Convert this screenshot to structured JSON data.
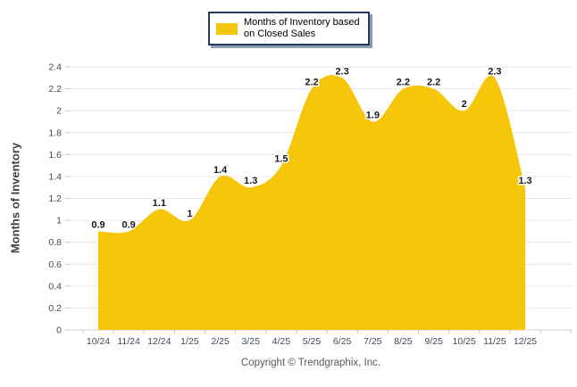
{
  "chart_data": {
    "type": "area",
    "title": "",
    "categories": [
      "10/24",
      "11/24",
      "12/24",
      "1/25",
      "2/25",
      "3/25",
      "4/25",
      "5/25",
      "6/25",
      "7/25",
      "8/25",
      "9/25",
      "10/25",
      "11/25",
      "12/25"
    ],
    "values": [
      0.9,
      0.9,
      1.1,
      1,
      1.4,
      1.3,
      1.5,
      2.2,
      2.3,
      1.9,
      2.2,
      2.2,
      2,
      2.3,
      1.3
    ],
    "series_name": "Months of Inventory based on Closed Sales",
    "xlabel": "",
    "ylabel": "Months of Inventory",
    "ylim": [
      0,
      2.4
    ],
    "ytick_step": 0.2,
    "yticks": [
      "0",
      "0.2",
      "0.4",
      "0.6",
      "0.8",
      "1",
      "1.2",
      "1.4",
      "1.6",
      "1.8",
      "2",
      "2.2",
      "2.4"
    ],
    "grid": true,
    "legend_position": "top-center",
    "smooth": true,
    "data_labels_shown": true
  },
  "legend": {
    "lines": [
      "Months of Inventory based",
      "on Closed Sales"
    ]
  },
  "footer": {
    "copyright": "Copyright © Trendgraphix, Inc."
  },
  "colors": {
    "series": "#F5C60A",
    "legend_border": "#1F3864",
    "grid": "#E6E6E6",
    "axis_line": "#D6D6D6",
    "tick": "#C4C4C4",
    "axis_text": "#3F4A5A",
    "data_label": "#1A1A1A",
    "data_label_halo": "#FFFFFF",
    "ylabel_text": "#3F3F3F",
    "copyright_text": "#595959",
    "background": "#FFFFFF"
  }
}
